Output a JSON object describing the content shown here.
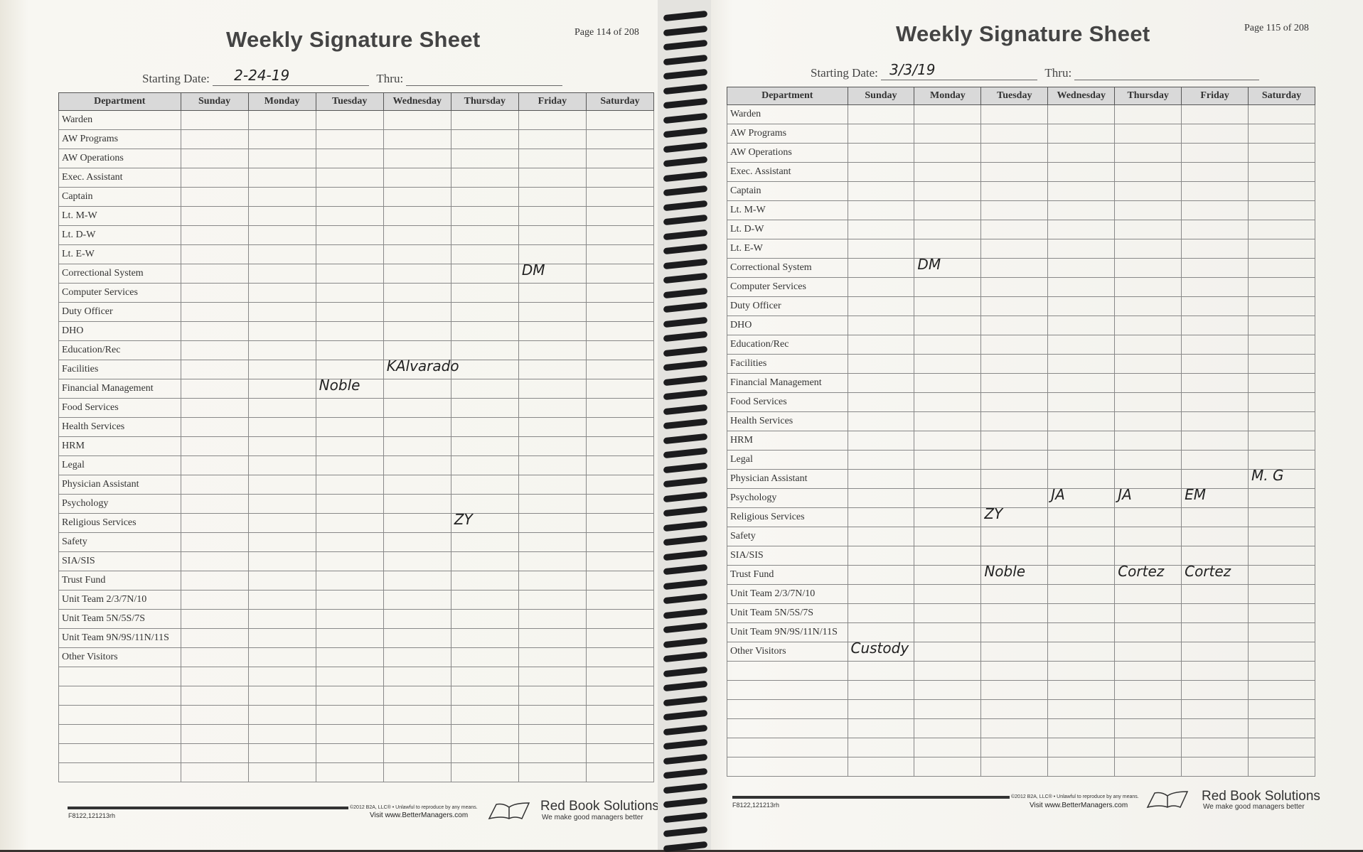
{
  "pages": [
    {
      "title": "Weekly Signature Sheet",
      "page_number": "Page 114 of 208",
      "starting_date_label": "Starting Date:",
      "starting_date": "2-24-19",
      "thru_label": "Thru:",
      "thru": "",
      "columns": [
        "Department",
        "Sunday",
        "Monday",
        "Tuesday",
        "Wednesday",
        "Thursday",
        "Friday",
        "Saturday"
      ],
      "departments": [
        "Warden",
        "AW Programs",
        "AW Operations",
        "Exec. Assistant",
        "Captain",
        "Lt. M-W",
        "Lt. D-W",
        "Lt. E-W",
        "Correctional System",
        "Computer Services",
        "Duty Officer",
        "DHO",
        "Education/Rec",
        "Facilities",
        "Financial Management",
        "Food Services",
        "Health Services",
        "HRM",
        "Legal",
        "Physician Assistant",
        "Psychology",
        "Religious Services",
        "Safety",
        "SIA/SIS",
        "Trust Fund",
        "Unit Team 2/3/7N/10",
        "Unit Team 5N/5S/7S",
        "Unit Team 9N/9S/11N/11S",
        "Other Visitors",
        "",
        "",
        "",
        "",
        "",
        ""
      ],
      "entries": [
        {
          "row": 8,
          "day": 6,
          "text": "DM"
        },
        {
          "row": 13,
          "day": 4,
          "text": "KAlvarado"
        },
        {
          "row": 14,
          "day": 3,
          "text": "Noble"
        },
        {
          "row": 21,
          "day": 5,
          "text": "ZY"
        }
      ],
      "footer": {
        "form_code": "F8122,121213rh",
        "copyright": "©2012 B2A, LLC® • Unlawful to reproduce by any means.",
        "visit": "Visit www.BetterManagers.com",
        "brand": "Red Book Solutions",
        "tagline": "We make good managers better"
      }
    },
    {
      "title": "Weekly Signature Sheet",
      "page_number": "Page 115 of 208",
      "starting_date_label": "Starting Date:",
      "starting_date": "3/3/19",
      "thru_label": "Thru:",
      "thru": "",
      "columns": [
        "Department",
        "Sunday",
        "Monday",
        "Tuesday",
        "Wednesday",
        "Thursday",
        "Friday",
        "Saturday"
      ],
      "departments": [
        "Warden",
        "AW Programs",
        "AW Operations",
        "Exec. Assistant",
        "Captain",
        "Lt. M-W",
        "Lt. D-W",
        "Lt. E-W",
        "Correctional System",
        "Computer Services",
        "Duty Officer",
        "DHO",
        "Education/Rec",
        "Facilities",
        "Financial Management",
        "Food Services",
        "Health Services",
        "HRM",
        "Legal",
        "Physician Assistant",
        "Psychology",
        "Religious Services",
        "Safety",
        "SIA/SIS",
        "Trust Fund",
        "Unit Team 2/3/7N/10",
        "Unit Team 5N/5S/7S",
        "Unit Team 9N/9S/11N/11S",
        "Other Visitors",
        "",
        "",
        "",
        "",
        "",
        ""
      ],
      "entries": [
        {
          "row": 8,
          "day": 2,
          "text": "DM"
        },
        {
          "row": 20,
          "day": 4,
          "text": "JA"
        },
        {
          "row": 20,
          "day": 5,
          "text": "JA"
        },
        {
          "row": 20,
          "day": 6,
          "text": "EM"
        },
        {
          "row": 19,
          "day": 7,
          "text": "M. G"
        },
        {
          "row": 21,
          "day": 3,
          "text": "ZY"
        },
        {
          "row": 24,
          "day": 3,
          "text": "Noble"
        },
        {
          "row": 24,
          "day": 5,
          "text": "Cortez"
        },
        {
          "row": 24,
          "day": 6,
          "text": "Cortez"
        },
        {
          "row": 28,
          "day": 1,
          "text": "Custody"
        }
      ],
      "footer": {
        "form_code": "F8122,121213rh",
        "copyright": "©2012 B2A, LLC® • Unlawful to reproduce by any means.",
        "visit": "Visit www.BetterManagers.com",
        "brand": "Red Book Solutions",
        "tagline": "We make good managers better"
      }
    }
  ],
  "colors": {
    "paper": "#f7f6f1",
    "header_fill": "#d9d9d9",
    "spiral": "#1c1c1e",
    "ink": "#222222"
  }
}
